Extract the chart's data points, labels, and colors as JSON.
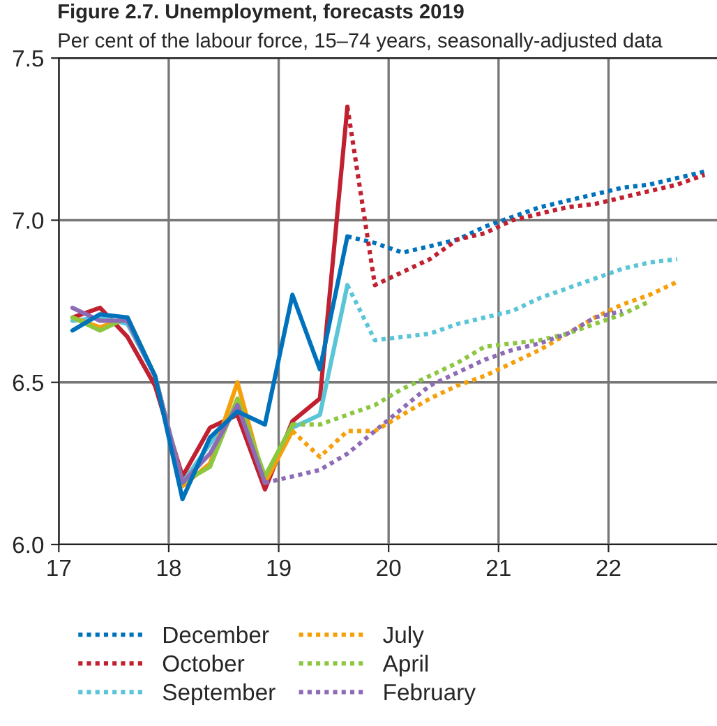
{
  "chart_data": {
    "type": "line",
    "title": "Figure 2.7. Unemployment, forecasts 2019",
    "subtitle": "Per cent of the labour force, 15–74 years, seasonally-adjusted data",
    "xlim": [
      17,
      23
    ],
    "xticks": [
      17,
      18,
      19,
      20,
      21,
      22
    ],
    "ylim": [
      6.0,
      7.5
    ],
    "yticks": [
      {
        "value": 6.0,
        "label": "6.0"
      },
      6.5,
      {
        "value": 7.0,
        "label": "7.0"
      },
      7.5
    ],
    "grid": true,
    "legend": "bottom",
    "marker": "none",
    "series": [
      {
        "color": "#c0202f",
        "line_style": "solid",
        "x": [
          17.125,
          17.375,
          17.625,
          17.875,
          18.125,
          18.375,
          18.625,
          18.875,
          19.125,
          19.375,
          19.625
        ],
        "values": [
          6.7,
          6.73,
          6.64,
          6.49,
          6.21,
          6.36,
          6.4,
          6.17,
          6.38,
          6.45,
          7.35
        ]
      },
      {
        "color": "#5bc5d8",
        "line_style": "solid",
        "x": [
          17.125,
          17.375,
          17.625,
          17.875,
          18.125,
          18.375,
          18.625,
          18.875,
          19.125,
          19.375,
          19.625
        ],
        "values": [
          6.69,
          6.7,
          6.68,
          6.52,
          6.19,
          6.31,
          6.43,
          6.21,
          6.36,
          6.4,
          6.8
        ]
      },
      {
        "color": "#f5a00a",
        "line_style": "solid",
        "x": [
          17.125,
          17.375,
          17.625,
          17.875,
          18.125,
          18.375,
          18.625,
          18.875,
          19.125
        ],
        "values": [
          6.7,
          6.67,
          6.7,
          6.52,
          6.18,
          6.25,
          6.5,
          6.19,
          6.35
        ]
      },
      {
        "color": "#8dc63f",
        "line_style": "solid",
        "x": [
          17.125,
          17.375,
          17.625,
          17.875,
          18.125,
          18.375,
          18.625,
          18.875,
          19.125
        ],
        "values": [
          6.7,
          6.66,
          6.7,
          6.52,
          6.19,
          6.24,
          6.45,
          6.21,
          6.37
        ]
      },
      {
        "color": "#8e6bb5",
        "line_style": "solid",
        "x": [
          17.125,
          17.375,
          17.625,
          17.875,
          18.125,
          18.375,
          18.625,
          18.875
        ],
        "values": [
          6.73,
          6.69,
          6.69,
          6.52,
          6.19,
          6.28,
          6.43,
          6.19
        ]
      },
      {
        "color": "#0072bc",
        "line_style": "solid",
        "x": [
          17.125,
          17.375,
          17.625,
          17.875,
          18.125,
          18.375,
          18.625,
          18.875,
          19.125,
          19.375,
          19.625
        ],
        "values": [
          6.66,
          6.71,
          6.7,
          6.52,
          6.14,
          6.33,
          6.41,
          6.37,
          6.77,
          6.54,
          6.95
        ]
      },
      {
        "name": "December",
        "color": "#0072bc",
        "line_style": "dotted",
        "x": [
          19.625,
          19.875,
          20.125,
          20.375,
          20.625,
          20.875,
          21.125,
          21.375,
          21.625,
          21.875,
          22.125,
          22.375,
          22.625,
          22.875
        ],
        "values": [
          6.95,
          6.93,
          6.9,
          6.92,
          6.94,
          6.98,
          7.01,
          7.04,
          7.06,
          7.08,
          7.1,
          7.11,
          7.13,
          7.15
        ]
      },
      {
        "name": "October",
        "color": "#c0202f",
        "line_style": "dotted",
        "x": [
          19.625,
          19.875,
          20.125,
          20.375,
          20.625,
          20.875,
          21.125,
          21.375,
          21.625,
          21.875,
          22.125,
          22.375,
          22.625,
          22.875
        ],
        "values": [
          7.35,
          6.8,
          6.84,
          6.88,
          6.94,
          6.96,
          7.0,
          7.02,
          7.04,
          7.05,
          7.07,
          7.09,
          7.11,
          7.14
        ]
      },
      {
        "name": "September",
        "color": "#5bc5d8",
        "line_style": "dotted",
        "x": [
          19.625,
          19.875,
          20.125,
          20.375,
          20.625,
          20.875,
          21.125,
          21.375,
          21.625,
          21.875,
          22.125,
          22.375,
          22.625
        ],
        "values": [
          6.8,
          6.63,
          6.64,
          6.65,
          6.68,
          6.7,
          6.72,
          6.76,
          6.79,
          6.82,
          6.85,
          6.87,
          6.88
        ]
      },
      {
        "name": "July",
        "color": "#f5a00a",
        "line_style": "dotted",
        "x": [
          19.125,
          19.375,
          19.625,
          19.875,
          20.125,
          20.375,
          20.625,
          20.875,
          21.125,
          21.375,
          21.625,
          21.875,
          22.125,
          22.375,
          22.625
        ],
        "values": [
          6.35,
          6.27,
          6.35,
          6.35,
          6.4,
          6.45,
          6.49,
          6.52,
          6.56,
          6.6,
          6.65,
          6.7,
          6.74,
          6.77,
          6.81
        ]
      },
      {
        "name": "April",
        "color": "#8dc63f",
        "line_style": "dotted",
        "x": [
          19.125,
          19.375,
          19.625,
          19.875,
          20.125,
          20.375,
          20.625,
          20.875,
          21.125,
          21.375,
          21.625,
          21.875,
          22.125,
          22.375
        ],
        "values": [
          6.37,
          6.37,
          6.4,
          6.43,
          6.48,
          6.52,
          6.56,
          6.61,
          6.62,
          6.63,
          6.65,
          6.68,
          6.71,
          6.75
        ]
      },
      {
        "name": "February",
        "color": "#8e6bb5",
        "line_style": "dotted",
        "x": [
          18.875,
          19.125,
          19.375,
          19.625,
          19.875,
          20.125,
          20.375,
          20.625,
          20.875,
          21.125,
          21.375,
          21.625,
          21.875,
          22.125
        ],
        "values": [
          6.19,
          6.21,
          6.23,
          6.28,
          6.35,
          6.42,
          6.49,
          6.53,
          6.57,
          6.6,
          6.62,
          6.65,
          6.7,
          6.72
        ]
      }
    ]
  }
}
